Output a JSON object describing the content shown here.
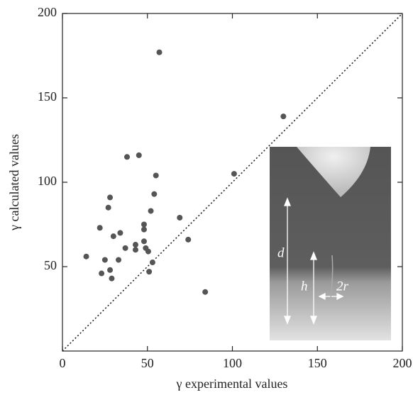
{
  "chart_data": {
    "type": "scatter",
    "xlabel": "γ experimental values",
    "ylabel": "γ calculated values",
    "xlim": [
      0,
      200
    ],
    "ylim": [
      0,
      200
    ],
    "xticks": [
      0,
      50,
      100,
      150,
      200
    ],
    "yticks": [
      50,
      100,
      150,
      200
    ],
    "color": "#555555",
    "diagonal": true,
    "x": [
      14,
      22,
      25,
      23,
      27,
      28,
      28,
      29,
      30,
      33,
      34,
      37,
      38,
      43,
      43,
      45,
      48,
      48,
      48,
      49,
      50.5,
      51,
      52,
      53,
      54,
      55,
      57,
      69,
      74,
      84,
      101,
      130
    ],
    "values": [
      56,
      73,
      54,
      46,
      85,
      91,
      48,
      43,
      68,
      54,
      70,
      61,
      115,
      63,
      60,
      116,
      75,
      72,
      65,
      61,
      59,
      47,
      83,
      52.5,
      93,
      104,
      177,
      79,
      66,
      35,
      105,
      139
    ],
    "inset_labels": {
      "d": "d",
      "h": "h",
      "r": "2r"
    }
  }
}
